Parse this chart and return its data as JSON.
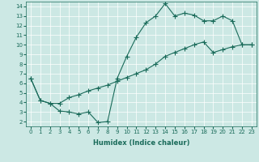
{
  "xlabel": "Humidex (Indice chaleur)",
  "background_color": "#cce8e4",
  "line_color": "#1a6b5a",
  "xlim": [
    -0.5,
    23.5
  ],
  "ylim": [
    1.5,
    14.5
  ],
  "xticks": [
    0,
    1,
    2,
    3,
    4,
    5,
    6,
    7,
    8,
    9,
    10,
    11,
    12,
    13,
    14,
    15,
    16,
    17,
    18,
    19,
    20,
    21,
    22,
    23
  ],
  "yticks": [
    2,
    3,
    4,
    5,
    6,
    7,
    8,
    9,
    10,
    11,
    12,
    13,
    14
  ],
  "line1_x": [
    0,
    1,
    2,
    3,
    4,
    5,
    6,
    7,
    8,
    9,
    10,
    11,
    12,
    13,
    14,
    15,
    16,
    17,
    18,
    19,
    20,
    21,
    22,
    23
  ],
  "line1_y": [
    6.5,
    4.2,
    3.9,
    3.1,
    3.0,
    2.8,
    3.0,
    1.9,
    2.0,
    6.5,
    8.8,
    10.8,
    12.3,
    13.0,
    14.3,
    13.0,
    13.3,
    13.1,
    12.5,
    12.5,
    13.0,
    12.5,
    10.0,
    10.0
  ],
  "line2_x": [
    0,
    1,
    2,
    3,
    4,
    5,
    6,
    7,
    8,
    9,
    10,
    11,
    12,
    13,
    14,
    15,
    16,
    17,
    18,
    19,
    20,
    21,
    22,
    23
  ],
  "line2_y": [
    6.5,
    4.2,
    3.9,
    3.9,
    4.5,
    4.8,
    5.2,
    5.5,
    5.8,
    6.2,
    6.6,
    7.0,
    7.4,
    8.0,
    8.8,
    9.2,
    9.6,
    10.0,
    10.3,
    9.2,
    9.5,
    9.8,
    10.0,
    10.0
  ]
}
